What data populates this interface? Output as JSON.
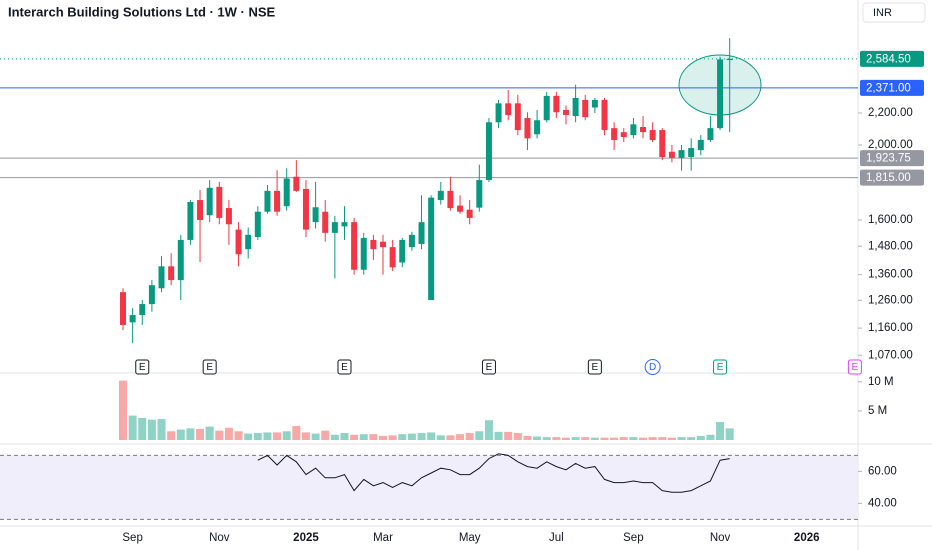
{
  "header": {
    "title": "Interarch Building Solutions Ltd · 1W · NSE",
    "currency": "INR"
  },
  "chart_data": [
    {
      "type": "candlestick",
      "categories": [
        null,
        "Sep",
        null,
        null,
        null,
        null,
        null,
        null,
        null,
        null,
        "Nov",
        null,
        null,
        null,
        null,
        null,
        null,
        null,
        null,
        "2025",
        null,
        null,
        null,
        null,
        null,
        null,
        null,
        "Mar",
        null,
        null,
        null,
        null,
        null,
        null,
        null,
        null,
        "May",
        null,
        null,
        null,
        null,
        null,
        null,
        null,
        null,
        "Jul",
        null,
        null,
        null,
        null,
        null,
        null,
        null,
        "Sep",
        null,
        null,
        null,
        null,
        null,
        null,
        null,
        null,
        "Nov",
        null,
        null,
        null,
        null,
        null,
        null,
        null,
        null,
        "2026",
        null,
        null,
        null,
        null,
        null
      ],
      "open": [
        1291,
        1180,
        1206,
        1246,
        1306,
        1394,
        1338,
        1508,
        1698,
        1623,
        1766,
        1658,
        1555,
        1467,
        1521,
        1640,
        1745,
        1667,
        1820,
        1755,
        1590,
        1640,
        1540,
        1570,
        1590,
        1380,
        1508,
        1500,
        1476,
        1410,
        1476,
        1490,
        1261,
        1698,
        1745,
        1670,
        1650,
        1660,
        1802,
        2140,
        2264,
        2264,
        2167,
        2065,
        2153,
        2315,
        2220,
        2180,
        2287,
        2236,
        2287,
        2103,
        2078,
        2060,
        2110,
        2091,
        2091,
        1960,
        1925,
        1930,
        1970,
        2030,
        2103,
        2575,
        null,
        null,
        null,
        null,
        null,
        null,
        null,
        null,
        null,
        null,
        null,
        null,
        null
      ],
      "high": [
        1306,
        1231,
        1261,
        1338,
        1437,
        1450,
        1531,
        1698,
        1750,
        1802,
        1792,
        1698,
        1590,
        1565,
        1667,
        1776,
        1856,
        1866,
        1912,
        1802,
        1792,
        1698,
        1620,
        1667,
        1610,
        1540,
        1531,
        1531,
        1508,
        1517,
        1545,
        1722,
        1722,
        1792,
        1820,
        1722,
        1698,
        1887,
        2167,
        2287,
        2356,
        2322,
        2205,
        2220,
        2343,
        2343,
        2250,
        2393,
        2322,
        2300,
        2300,
        2140,
        2103,
        2167,
        2180,
        2140,
        2103,
        2000,
        2000,
        2040,
        2060,
        2180,
        2600,
        2748,
        null,
        null,
        null,
        null,
        null,
        null,
        null,
        null,
        null,
        null,
        null,
        null,
        null
      ],
      "low": [
        1153,
        1109,
        1171,
        1218,
        1291,
        1318,
        1261,
        1486,
        1412,
        1590,
        1580,
        1486,
        1394,
        1427,
        1508,
        1630,
        1620,
        1645,
        1740,
        1521,
        1560,
        1500,
        1345,
        1508,
        1360,
        1360,
        1421,
        1360,
        1375,
        1390,
        1460,
        1467,
        1261,
        1675,
        1645,
        1630,
        1580,
        1640,
        1792,
        2103,
        2153,
        2060,
        1970,
        2040,
        2140,
        2167,
        2127,
        2140,
        2153,
        2200,
        2060,
        1970,
        2018,
        2040,
        2040,
        2018,
        1912,
        1900,
        1853,
        1853,
        1940,
        2018,
        2091,
        2078,
        null,
        null,
        null,
        null,
        null,
        null,
        null,
        null,
        null,
        null,
        null,
        null,
        null
      ],
      "close": [
        1171,
        1206,
        1246,
        1318,
        1394,
        1338,
        1508,
        1688,
        1600,
        1761,
        1610,
        1580,
        1445,
        1531,
        1640,
        1745,
        1640,
        1810,
        1745,
        1555,
        1662,
        1540,
        1590,
        1590,
        1380,
        1517,
        1467,
        1476,
        1390,
        1508,
        1531,
        1590,
        1710,
        1745,
        1658,
        1640,
        1610,
        1802,
        2140,
        2264,
        2187,
        2091,
        2040,
        2153,
        2315,
        2205,
        2187,
        2301,
        2173,
        2287,
        2091,
        2030,
        2048,
        2127,
        2078,
        2030,
        1930,
        1925,
        1970,
        1982,
        2030,
        2103,
        2580,
        2584.5,
        null,
        null,
        null,
        null,
        null,
        null,
        null,
        null,
        null,
        null,
        null,
        null,
        null
      ],
      "up_color": "#089981",
      "down_color": "#f23645",
      "log_scale": true,
      "ylim": [
        1018,
        3079
      ],
      "yticks": [
        {
          "value": 1070,
          "label": "1,070.00"
        },
        {
          "value": 1160,
          "label": "1,160.00"
        },
        {
          "value": 1260,
          "label": "1,260.00"
        },
        {
          "value": 1360,
          "label": "1,360.00"
        },
        {
          "value": 1480,
          "label": "1,480.00"
        },
        {
          "value": 1600,
          "label": "1,600.00"
        },
        {
          "value": 2000,
          "label": "2,000.00"
        },
        {
          "value": 2200,
          "label": "2,200.00"
        }
      ],
      "price_lines": [
        {
          "value": 2584.5,
          "label": "2,584.50",
          "color": "#089981",
          "dashed": true
        },
        {
          "value": 2371,
          "label": "2,371.00",
          "color": "#2962ff",
          "dashed": false
        },
        {
          "value": 1923.75,
          "label": "1,923.75",
          "color": "#9598a1",
          "dashed": false
        },
        {
          "value": 1815,
          "label": "1,815.00",
          "color": "#9598a1",
          "dashed": false
        }
      ],
      "events": [
        {
          "at": 2,
          "label": "E",
          "color": "#131722"
        },
        {
          "at": 9,
          "label": "E",
          "color": "#131722"
        },
        {
          "at": 23,
          "label": "E",
          "color": "#131722"
        },
        {
          "at": 38,
          "label": "E",
          "color": "#131722"
        },
        {
          "at": 49,
          "label": "E",
          "color": "#131722"
        },
        {
          "at": 55,
          "label": "D",
          "color": "#2962ff"
        },
        {
          "at": 62,
          "label": "E",
          "color": "#089981"
        },
        {
          "at": 76,
          "label": "E",
          "color": "#e040fb"
        }
      ]
    },
    {
      "type": "bar",
      "values": [
        10200000,
        4200000,
        3800000,
        3500000,
        3600000,
        1500000,
        1800000,
        2000000,
        1900000,
        2300000,
        1600000,
        2100000,
        1500000,
        1100000,
        1200000,
        1300000,
        1300000,
        1500000,
        2400000,
        1300000,
        1100000,
        1600000,
        900000,
        1200000,
        900000,
        1000000,
        1000000,
        700000,
        800000,
        1000000,
        1100000,
        1200000,
        1300000,
        800000,
        800000,
        1000000,
        1200000,
        1500000,
        3400000,
        1400000,
        1400000,
        1200000,
        700000,
        600000,
        500000,
        500000,
        400000,
        500000,
        500000,
        400000,
        400000,
        400000,
        500000,
        500000,
        400000,
        500000,
        500000,
        400000,
        500000,
        500000,
        700000,
        900000,
        3100000,
        2000000,
        null,
        null,
        null,
        null,
        null,
        null,
        null,
        null,
        null,
        null,
        null,
        null,
        null
      ],
      "up_color": "#8fd3c7",
      "down_color": "#f7a9a7",
      "ylim": [
        0,
        11000000
      ],
      "yticks": [
        {
          "value": 5000000,
          "label": "5 M"
        },
        {
          "value": 10000000,
          "label": "10 M"
        }
      ]
    },
    {
      "type": "line",
      "values": [
        null,
        null,
        null,
        null,
        null,
        null,
        null,
        null,
        null,
        null,
        null,
        null,
        null,
        null,
        67,
        70,
        64,
        70,
        66,
        58,
        62,
        56,
        56,
        58,
        48,
        55,
        51,
        53,
        50,
        53,
        51,
        56,
        59,
        62,
        61,
        58,
        58,
        62,
        68,
        71,
        70,
        66,
        63,
        62,
        66,
        63,
        61,
        65,
        62,
        63,
        55,
        53,
        53,
        54,
        53,
        53,
        48,
        47,
        47,
        48,
        51,
        54,
        67,
        68,
        null,
        null,
        null,
        null,
        null,
        null,
        null,
        null,
        null,
        null,
        null,
        null,
        null
      ],
      "color": "#131722",
      "band_color": "#f0eefa",
      "ylim": [
        29,
        71.5
      ],
      "yticks": [
        {
          "value": 40,
          "label": "40.00"
        },
        {
          "value": 60,
          "label": "60.00"
        }
      ],
      "bands": [
        30,
        70
      ]
    }
  ]
}
